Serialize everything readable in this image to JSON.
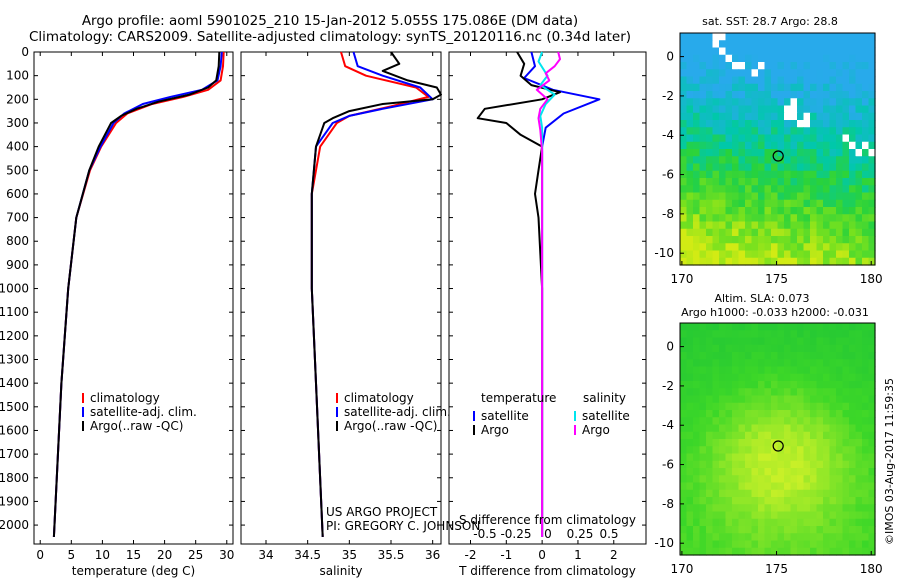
{
  "header": {
    "line1": "Argo profile: aoml 5901025_210 15-Jan-2012 5.055S 175.086E (DM data)",
    "line2": "Climatology: CARS2009. Satellite-adjusted climatology: synTS_20120116.nc (0.34d later)"
  },
  "colors": {
    "climatology": "#ff0000",
    "satellite": "#0000ff",
    "argo": "#000000",
    "sat_salinity": "#00e5ee",
    "argo_salinity": "#ff00ff"
  },
  "chart_data": [
    {
      "type": "line",
      "id": "temperature",
      "xlabel": "temperature (deg C)",
      "xlim": [
        -1,
        31
      ],
      "xticks": [
        "0",
        "5",
        "10",
        "15",
        "20",
        "25",
        "30"
      ],
      "ylim": [
        0,
        2080
      ],
      "yticks": [
        "0",
        "100",
        "200",
        "300",
        "400",
        "500",
        "600",
        "700",
        "800",
        "900",
        "1000",
        "1100",
        "1200",
        "1300",
        "1400",
        "1500",
        "1600",
        "1700",
        "1800",
        "1900",
        "2000"
      ],
      "legend": [
        "climatology",
        "satellite-adj. clim.",
        "Argo(..raw -QC)"
      ],
      "series": [
        {
          "name": "climatology",
          "depth": [
            0,
            60,
            120,
            160,
            190,
            220,
            260,
            300,
            400,
            500,
            700,
            1000,
            1400,
            2050
          ],
          "values": [
            29.5,
            29.4,
            29.0,
            27.0,
            23.0,
            18.0,
            14.0,
            12.2,
            9.8,
            8.0,
            5.8,
            4.5,
            3.4,
            2.2
          ]
        },
        {
          "name": "satellite-adj. clim.",
          "depth": [
            0,
            60,
            120,
            160,
            190,
            220,
            260,
            300,
            400,
            500,
            700,
            1000,
            1400,
            2050
          ],
          "values": [
            29.2,
            29.0,
            28.5,
            26.0,
            21.0,
            16.5,
            13.5,
            11.8,
            9.7,
            7.9,
            5.8,
            4.5,
            3.4,
            2.2
          ]
        },
        {
          "name": "Argo(..raw -QC)",
          "depth": [
            0,
            60,
            120,
            150,
            180,
            210,
            240,
            270,
            300,
            400,
            500,
            700,
            1000,
            1400,
            2050
          ],
          "values": [
            28.8,
            28.7,
            28.3,
            27.0,
            24.0,
            19.0,
            15.5,
            13.0,
            11.4,
            9.4,
            7.9,
            5.8,
            4.5,
            3.4,
            2.2
          ]
        }
      ]
    },
    {
      "type": "line",
      "id": "salinity",
      "xlabel": "salinity",
      "xlim": [
        33.7,
        36.1
      ],
      "xticks": [
        "34",
        "34.5",
        "35",
        "35.5",
        "36"
      ],
      "ylim": [
        0,
        2080
      ],
      "legend": [
        "climatology",
        "satellite-adj. clim.",
        "Argo(..raw -QC)"
      ],
      "series": [
        {
          "name": "climatology",
          "depth": [
            0,
            60,
            100,
            150,
            190,
            230,
            270,
            300,
            400,
            600,
            1000,
            1400,
            2050
          ],
          "values": [
            34.9,
            34.95,
            35.2,
            35.8,
            35.95,
            35.5,
            35.0,
            34.85,
            34.65,
            34.55,
            34.55,
            34.6,
            34.68
          ]
        },
        {
          "name": "satellite-adj. clim.",
          "depth": [
            0,
            60,
            100,
            150,
            200,
            240,
            270,
            300,
            400,
            600,
            1000,
            1400,
            2050
          ],
          "values": [
            35.05,
            35.1,
            35.4,
            35.85,
            36.0,
            35.4,
            35.0,
            34.8,
            34.6,
            34.55,
            34.55,
            34.6,
            34.68
          ]
        },
        {
          "name": "Argo(..raw -QC)",
          "depth": [
            0,
            50,
            80,
            120,
            150,
            180,
            200,
            220,
            250,
            280,
            300,
            400,
            600,
            1000,
            1400,
            2050
          ],
          "values": [
            35.5,
            35.6,
            35.4,
            35.7,
            36.05,
            36.1,
            36.0,
            35.4,
            35.0,
            34.8,
            34.7,
            34.6,
            34.55,
            34.55,
            34.6,
            34.68
          ]
        }
      ],
      "credit1": "US ARGO PROJECT",
      "credit2": "PI: GREGORY C. JOHNSON"
    },
    {
      "type": "line",
      "id": "difference",
      "xlabel": "T difference from climatology",
      "xlabel_top": "S difference from climatology",
      "xlim": [
        -2.6,
        2.9
      ],
      "xticks": [
        "-2",
        "-1",
        "0",
        "1",
        "2"
      ],
      "xticks_s": [
        "-0.5",
        "-0.25",
        "0",
        "0.25",
        "0.5"
      ],
      "ylim": [
        0,
        2080
      ],
      "legend_titles": [
        "temperature",
        "salinity"
      ],
      "legend": [
        "satellite",
        "Argo",
        "satellite",
        "Argo"
      ],
      "series": [
        {
          "name": "temperature satellite",
          "depth": [
            0,
            60,
            110,
            160,
            200,
            260,
            320,
            400,
            600,
            1000,
            2050
          ],
          "values": [
            -0.3,
            -0.2,
            -0.5,
            0.3,
            1.6,
            0.6,
            0.1,
            0.0,
            0.0,
            0.0,
            0.0
          ]
        },
        {
          "name": "temperature Argo",
          "depth": [
            0,
            50,
            100,
            140,
            170,
            200,
            240,
            280,
            300,
            350,
            400,
            500,
            600,
            700,
            1000,
            2050
          ],
          "values": [
            -0.7,
            -0.5,
            -0.6,
            -0.3,
            0.5,
            0.0,
            -1.6,
            -1.8,
            -1.0,
            -0.6,
            0.0,
            -0.1,
            -0.2,
            -0.1,
            0.0,
            0.0
          ]
        },
        {
          "name": "salinity satellite",
          "depth": [
            0,
            40,
            100,
            140,
            180,
            220,
            270,
            320,
            400,
            1000,
            2050
          ],
          "values": [
            0.0,
            -0.1,
            0.15,
            -0.05,
            0.35,
            0.1,
            -0.05,
            0.0,
            0.0,
            0.0,
            0.0
          ]
        },
        {
          "name": "salinity Argo",
          "depth": [
            0,
            30,
            60,
            90,
            120,
            160,
            200,
            240,
            280,
            330,
            420,
            1000,
            2050
          ],
          "values": [
            0.45,
            0.5,
            0.35,
            0.1,
            0.2,
            -0.15,
            0.15,
            -0.05,
            -0.1,
            -0.05,
            0.0,
            0.0,
            0.0
          ]
        }
      ]
    }
  ],
  "maps": {
    "sst_title": "sat. SST: 28.7 Argo: 28.8",
    "sla_title1": "Altim. SLA: 0.073",
    "sla_title2": "Argo h1000: -0.033 h2000: -0.031",
    "xticks": [
      "170",
      "175",
      "180"
    ],
    "yticks": [
      "0",
      "-2",
      "-4",
      "-6",
      "-8",
      "-10"
    ],
    "argo_lon": 175.086,
    "argo_lat": -5.055
  },
  "footer": {
    "timestamp": "©IMOS 03-Aug-2017 11:59:35"
  }
}
